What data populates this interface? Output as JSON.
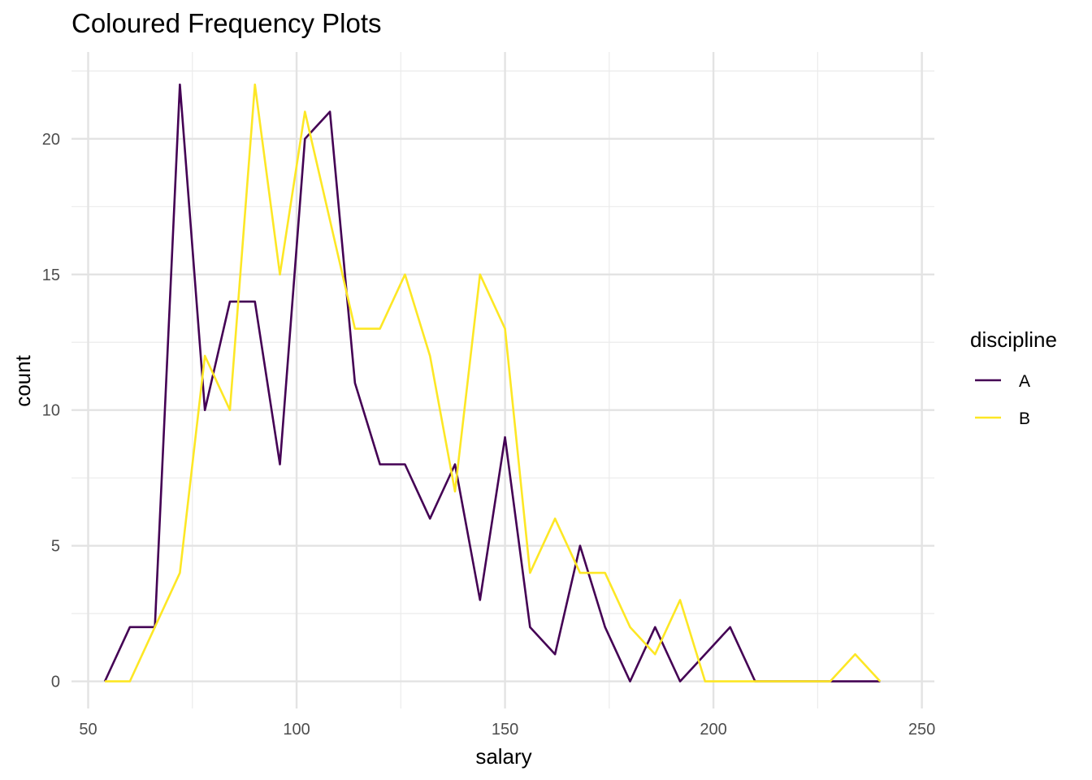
{
  "chart_data": {
    "type": "line",
    "title": "Coloured Frequency Plots",
    "xlabel": "salary",
    "ylabel": "count",
    "xlim": [
      46,
      253
    ],
    "ylim": [
      -1,
      23.2
    ],
    "x_ticks": [
      50,
      100,
      150,
      200,
      250
    ],
    "x_tick_labels": [
      "50",
      "100",
      "150",
      "200",
      "250"
    ],
    "y_ticks": [
      0,
      5,
      10,
      15,
      20
    ],
    "y_tick_labels": [
      "0",
      "5",
      "10",
      "15",
      "20"
    ],
    "grid": true,
    "legend": {
      "title": "discipline",
      "position": "right"
    },
    "x": [
      54,
      60,
      66,
      72,
      78,
      84,
      90,
      96,
      102,
      108,
      114,
      120,
      126,
      132,
      138,
      144,
      150,
      156,
      162,
      168,
      174,
      180,
      186,
      192,
      198,
      204,
      210,
      216,
      222,
      228,
      234,
      240
    ],
    "series": [
      {
        "name": "A",
        "color": "#440154",
        "values": [
          0,
          2,
          2,
          22,
          10,
          14,
          14,
          8,
          20,
          21,
          11,
          8,
          8,
          6,
          8,
          3,
          9,
          2,
          1,
          5,
          2,
          0,
          2,
          0,
          1,
          2,
          0,
          0,
          0,
          0,
          0,
          0
        ]
      },
      {
        "name": "B",
        "color": "#FDE725",
        "values": [
          0,
          0,
          2,
          4,
          12,
          10,
          22,
          15,
          21,
          17,
          13,
          13,
          15,
          12,
          7,
          15,
          13,
          4,
          6,
          4,
          4,
          2,
          1,
          3,
          0,
          0,
          0,
          0,
          0,
          0,
          1,
          0
        ]
      }
    ]
  }
}
